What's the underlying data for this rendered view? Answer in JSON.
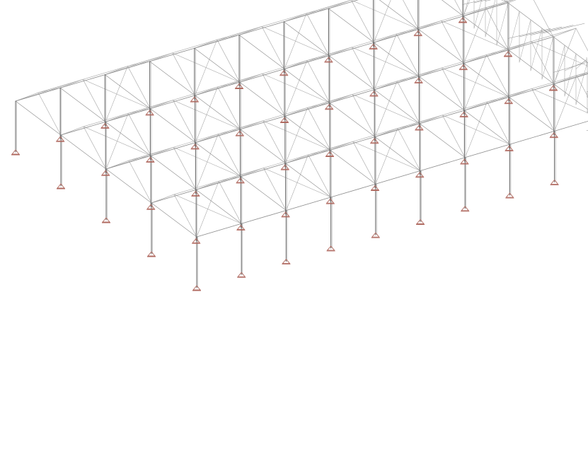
{
  "diagram": {
    "kind": "3d-wireframe-structural-model",
    "view": "isometric",
    "colors": {
      "background": "#ffffff",
      "column": "#6f6f6f",
      "column_highlight": "#a8a8a8",
      "beam": "#8a8a8a",
      "roof": "#b0b0b0",
      "bracing": "#a3a3a3",
      "support": "#b06a60"
    },
    "structure": {
      "roof_bays": 10,
      "frame_lines": 5,
      "roof_type": "gable"
    }
  }
}
